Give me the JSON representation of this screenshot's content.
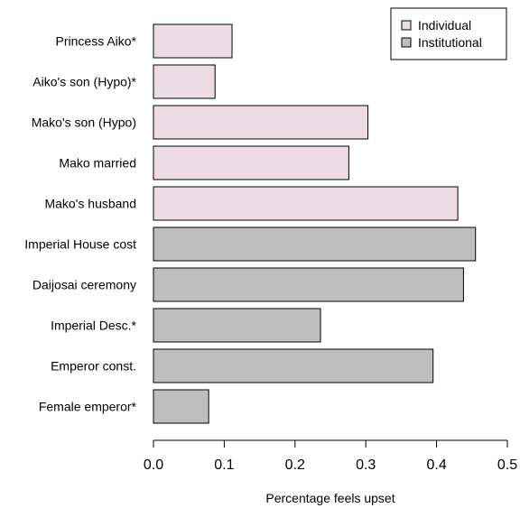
{
  "chart_data": {
    "type": "bar",
    "orientation": "horizontal",
    "categories": [
      "Princess Aiko*",
      "Aiko's son (Hypo)*",
      "Mako's son (Hypo)",
      "Mako married",
      "Mako's husband",
      "Imperial House cost",
      "Daijosai ceremony",
      "Imperial Desc.*",
      "Emperor const.",
      "Female emperor*"
    ],
    "values": [
      0.111,
      0.087,
      0.303,
      0.276,
      0.43,
      0.455,
      0.438,
      0.236,
      0.395,
      0.078
    ],
    "groups": [
      "Individual",
      "Individual",
      "Individual",
      "Individual",
      "Individual",
      "Institutional",
      "Institutional",
      "Institutional",
      "Institutional",
      "Institutional"
    ],
    "title": "",
    "xlabel": "Percentage feels upset",
    "ylabel": "",
    "xlim": [
      0,
      0.5
    ],
    "xticks": [
      "0.0",
      "0.1",
      "0.2",
      "0.3",
      "0.4",
      "0.5"
    ],
    "grid": false,
    "legend": {
      "position": "top-right",
      "entries": [
        {
          "name": "Individual",
          "color": "#ebdde3"
        },
        {
          "name": "Institutional",
          "color": "#bebebe"
        }
      ]
    },
    "colors": {
      "Individual": "#ebdde3",
      "Institutional": "#bebebe"
    }
  }
}
